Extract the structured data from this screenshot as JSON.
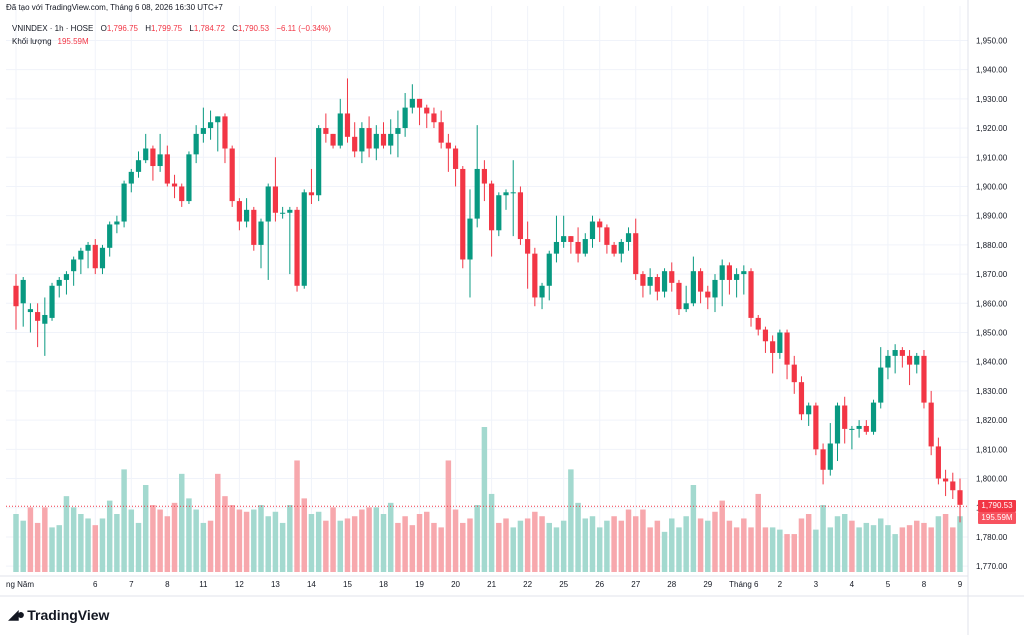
{
  "header": {
    "published": "Đã tạo với TradingView.com, Tháng 6 08, 2026 16:30 UTC+7"
  },
  "legend": {
    "symbol": "VNINDEX · 1h · HOSE",
    "o_label": "O",
    "o_value": "1,796.75",
    "h_label": "H",
    "h_value": "1,799.75",
    "l_label": "L",
    "l_value": "1,784.72",
    "c_label": "C",
    "c_value": "1,790.53",
    "change": "−6.11 (−0.34%)",
    "volume_label": "Khối lượng",
    "volume_value": "195.59M"
  },
  "price_tag": "1,790.53",
  "volume_tag": "195.59M",
  "logo_text": "TradingView",
  "colors": {
    "up": "#089981",
    "down": "#f23645",
    "vol_up": "#a3d9cf",
    "vol_down": "#f7a8ad",
    "grid": "#f0f3fa",
    "axis_text": "#131722"
  },
  "chart_data": {
    "type": "candlestick",
    "title": "",
    "ylim": [
      1768,
      1957
    ],
    "y_ticks": [
      "1,770.00",
      "1,780.00",
      "1,790.00",
      "1,800.00",
      "1,810.00",
      "1,820.00",
      "1,830.00",
      "1,840.00",
      "1,850.00",
      "1,860.00",
      "1,870.00",
      "1,880.00",
      "1,890.00",
      "1,900.00",
      "1,910.00",
      "1,920.00",
      "1,930.00",
      "1,940.00",
      "1,950.00"
    ],
    "y_tick_values": [
      1770,
      1780,
      1790,
      1800,
      1810,
      1820,
      1830,
      1840,
      1850,
      1860,
      1870,
      1880,
      1890,
      1900,
      1910,
      1920,
      1930,
      1940,
      1950
    ],
    "x_ticks": [
      {
        "label": "ng Năm",
        "bar": 0
      },
      {
        "label": "6",
        "bar": 11
      },
      {
        "label": "7",
        "bar": 16
      },
      {
        "label": "8",
        "bar": 21
      },
      {
        "label": "11",
        "bar": 26
      },
      {
        "label": "12",
        "bar": 31
      },
      {
        "label": "13",
        "bar": 36
      },
      {
        "label": "14",
        "bar": 41
      },
      {
        "label": "15",
        "bar": 46
      },
      {
        "label": "18",
        "bar": 51
      },
      {
        "label": "19",
        "bar": 56
      },
      {
        "label": "20",
        "bar": 61
      },
      {
        "label": "21",
        "bar": 66
      },
      {
        "label": "22",
        "bar": 71
      },
      {
        "label": "25",
        "bar": 76
      },
      {
        "label": "26",
        "bar": 81
      },
      {
        "label": "27",
        "bar": 86
      },
      {
        "label": "28",
        "bar": 91
      },
      {
        "label": "29",
        "bar": 96
      },
      {
        "label": "Tháng 6",
        "bar": 101
      },
      {
        "label": "2",
        "bar": 106
      },
      {
        "label": "3",
        "bar": 111
      },
      {
        "label": "4",
        "bar": 116
      },
      {
        "label": "5",
        "bar": 121
      },
      {
        "label": "8",
        "bar": 126
      },
      {
        "label": "9",
        "bar": 131
      }
    ],
    "last_price": 1790.53,
    "candles": [
      [
        1866,
        1859,
        1870,
        1851
      ],
      [
        1860,
        1868,
        1869,
        1852
      ],
      [
        1857,
        1858,
        1860,
        1850
      ],
      [
        1857,
        1854,
        1860,
        1845
      ],
      [
        1853,
        1856,
        1862,
        1842
      ],
      [
        1855,
        1866,
        1867,
        1854
      ],
      [
        1866,
        1868,
        1869,
        1862
      ],
      [
        1868,
        1870,
        1871,
        1863
      ],
      [
        1871,
        1875,
        1876,
        1866
      ],
      [
        1875,
        1878,
        1879,
        1870
      ],
      [
        1878,
        1880,
        1881,
        1872
      ],
      [
        1880,
        1872,
        1882,
        1870
      ],
      [
        1872,
        1879,
        1880,
        1870
      ],
      [
        1879,
        1887,
        1888,
        1876
      ],
      [
        1887,
        1888,
        1890,
        1884
      ],
      [
        1888,
        1901,
        1902,
        1886
      ],
      [
        1901,
        1905,
        1906,
        1898
      ],
      [
        1905,
        1909,
        1912,
        1903
      ],
      [
        1909,
        1913,
        1918,
        1908
      ],
      [
        1913,
        1907,
        1914,
        1902
      ],
      [
        1907,
        1911,
        1918,
        1905
      ],
      [
        1911,
        1901,
        1914,
        1900
      ],
      [
        1901,
        1900,
        1904,
        1896
      ],
      [
        1900,
        1895,
        1901,
        1893
      ],
      [
        1895,
        1911,
        1912,
        1894
      ],
      [
        1911,
        1918,
        1921,
        1908
      ],
      [
        1918,
        1920,
        1927,
        1915
      ],
      [
        1920,
        1922,
        1926,
        1916
      ],
      [
        1922,
        1924,
        1924,
        1912
      ],
      [
        1924,
        1913,
        1925,
        1908
      ],
      [
        1913,
        1895,
        1914,
        1893
      ],
      [
        1895,
        1888,
        1896,
        1885
      ],
      [
        1888,
        1892,
        1896,
        1886
      ],
      [
        1892,
        1880,
        1893,
        1878
      ],
      [
        1880,
        1888,
        1889,
        1872
      ],
      [
        1888,
        1900,
        1901,
        1868
      ],
      [
        1900,
        1891,
        1910,
        1888
      ],
      [
        1891,
        1891,
        1893,
        1889
      ],
      [
        1891,
        1892,
        1893,
        1870
      ],
      [
        1892,
        1866,
        1893,
        1864
      ],
      [
        1866,
        1898,
        1899,
        1865
      ],
      [
        1898,
        1897,
        1906,
        1894
      ],
      [
        1897,
        1920,
        1921,
        1895
      ],
      [
        1920,
        1918,
        1925,
        1915
      ],
      [
        1918,
        1914,
        1918,
        1913
      ],
      [
        1914,
        1925,
        1930,
        1913
      ],
      [
        1925,
        1917,
        1937,
        1915
      ],
      [
        1917,
        1912,
        1922,
        1910
      ],
      [
        1912,
        1920,
        1922,
        1908
      ],
      [
        1920,
        1913,
        1924,
        1910
      ],
      [
        1913,
        1918,
        1921,
        1909
      ],
      [
        1918,
        1914,
        1922,
        1913
      ],
      [
        1914,
        1918,
        1923,
        1911
      ],
      [
        1918,
        1920,
        1926,
        1910
      ],
      [
        1920,
        1927,
        1932,
        1917
      ],
      [
        1927,
        1930,
        1935,
        1925
      ],
      [
        1930,
        1927,
        1930,
        1921
      ],
      [
        1927,
        1925,
        1928,
        1920
      ],
      [
        1925,
        1922,
        1927,
        1920
      ],
      [
        1922,
        1915,
        1926,
        1913
      ],
      [
        1915,
        1913,
        1918,
        1905
      ],
      [
        1913,
        1906,
        1914,
        1900
      ],
      [
        1906,
        1875,
        1907,
        1872
      ],
      [
        1875,
        1889,
        1899,
        1862
      ],
      [
        1889,
        1906,
        1921,
        1886
      ],
      [
        1906,
        1901,
        1909,
        1895
      ],
      [
        1901,
        1885,
        1902,
        1876
      ],
      [
        1885,
        1897,
        1898,
        1883
      ],
      [
        1897,
        1898,
        1899,
        1892
      ],
      [
        1898,
        1898,
        1909,
        1883
      ],
      [
        1898,
        1882,
        1900,
        1880
      ],
      [
        1882,
        1877,
        1888,
        1865
      ],
      [
        1877,
        1862,
        1879,
        1859
      ],
      [
        1862,
        1866,
        1867,
        1858
      ],
      [
        1866,
        1877,
        1878,
        1861
      ],
      [
        1877,
        1881,
        1890,
        1874
      ],
      [
        1881,
        1883,
        1890,
        1879
      ],
      [
        1883,
        1881,
        1883,
        1877
      ],
      [
        1881,
        1877,
        1886,
        1874
      ],
      [
        1877,
        1882,
        1884,
        1876
      ],
      [
        1882,
        1888,
        1890,
        1879
      ],
      [
        1888,
        1886,
        1889,
        1881
      ],
      [
        1886,
        1880,
        1887,
        1877
      ],
      [
        1880,
        1877,
        1881,
        1876
      ],
      [
        1877,
        1881,
        1882,
        1874
      ],
      [
        1881,
        1884,
        1886,
        1878
      ],
      [
        1884,
        1870,
        1889,
        1868
      ],
      [
        1870,
        1866,
        1871,
        1862
      ],
      [
        1866,
        1869,
        1872,
        1863
      ],
      [
        1869,
        1864,
        1870,
        1861
      ],
      [
        1864,
        1871,
        1872,
        1862
      ],
      [
        1871,
        1867,
        1874,
        1864
      ],
      [
        1867,
        1858,
        1868,
        1856
      ],
      [
        1858,
        1860,
        1866,
        1857
      ],
      [
        1860,
        1871,
        1876,
        1859
      ],
      [
        1871,
        1864,
        1872,
        1860
      ],
      [
        1864,
        1862,
        1866,
        1858
      ],
      [
        1862,
        1868,
        1870,
        1857
      ],
      [
        1868,
        1873,
        1875,
        1859
      ],
      [
        1873,
        1868,
        1874,
        1863
      ],
      [
        1868,
        1870,
        1872,
        1862
      ],
      [
        1870,
        1871,
        1873,
        1863
      ],
      [
        1871,
        1855,
        1872,
        1852
      ],
      [
        1855,
        1851,
        1856,
        1849
      ],
      [
        1851,
        1847,
        1852,
        1843
      ],
      [
        1847,
        1843,
        1849,
        1836
      ],
      [
        1843,
        1850,
        1851,
        1841
      ],
      [
        1850,
        1839,
        1851,
        1834
      ],
      [
        1839,
        1833,
        1842,
        1829
      ],
      [
        1833,
        1822,
        1835,
        1820
      ],
      [
        1822,
        1825,
        1826,
        1818
      ],
      [
        1825,
        1810,
        1826,
        1808
      ],
      [
        1810,
        1803,
        1812,
        1798
      ],
      [
        1803,
        1812,
        1819,
        1801
      ],
      [
        1812,
        1825,
        1826,
        1806
      ],
      [
        1825,
        1817,
        1828,
        1812
      ],
      [
        1817,
        1817,
        1818,
        1810
      ],
      [
        1817,
        1818,
        1820,
        1814
      ],
      [
        1818,
        1816,
        1820,
        1815
      ],
      [
        1816,
        1826,
        1827,
        1815
      ],
      [
        1826,
        1838,
        1845,
        1824
      ],
      [
        1838,
        1842,
        1844,
        1834
      ],
      [
        1842,
        1844,
        1846,
        1836
      ],
      [
        1844,
        1842,
        1845,
        1838
      ],
      [
        1842,
        1839,
        1844,
        1832
      ],
      [
        1839,
        1842,
        1843,
        1836
      ],
      [
        1842,
        1826,
        1844,
        1824
      ],
      [
        1826,
        1811,
        1830,
        1808
      ],
      [
        1811,
        1800,
        1814,
        1798
      ],
      [
        1800,
        1799,
        1803,
        1794
      ],
      [
        1799,
        1796,
        1802,
        1793
      ],
      [
        1796,
        1791,
        1800,
        1785
      ]
    ],
    "volumes": [
      [
        52,
        1
      ],
      [
        46,
        1
      ],
      [
        58,
        0
      ],
      [
        44,
        0
      ],
      [
        58,
        0
      ],
      [
        40,
        1
      ],
      [
        42,
        1
      ],
      [
        68,
        1
      ],
      [
        58,
        1
      ],
      [
        52,
        1
      ],
      [
        48,
        1
      ],
      [
        42,
        0
      ],
      [
        48,
        1
      ],
      [
        64,
        1
      ],
      [
        52,
        1
      ],
      [
        92,
        1
      ],
      [
        56,
        1
      ],
      [
        44,
        1
      ],
      [
        78,
        1
      ],
      [
        60,
        0
      ],
      [
        56,
        0
      ],
      [
        50,
        0
      ],
      [
        62,
        0
      ],
      [
        88,
        1
      ],
      [
        66,
        1
      ],
      [
        56,
        1
      ],
      [
        44,
        1
      ],
      [
        46,
        0
      ],
      [
        88,
        0
      ],
      [
        68,
        0
      ],
      [
        60,
        0
      ],
      [
        56,
        0
      ],
      [
        54,
        0
      ],
      [
        56,
        1
      ],
      [
        60,
        1
      ],
      [
        50,
        1
      ],
      [
        54,
        1
      ],
      [
        44,
        1
      ],
      [
        60,
        1
      ],
      [
        100,
        0
      ],
      [
        66,
        0
      ],
      [
        52,
        1
      ],
      [
        54,
        1
      ],
      [
        46,
        0
      ],
      [
        58,
        0
      ],
      [
        46,
        1
      ],
      [
        48,
        0
      ],
      [
        50,
        0
      ],
      [
        56,
        0
      ],
      [
        58,
        0
      ],
      [
        58,
        1
      ],
      [
        52,
        1
      ],
      [
        62,
        1
      ],
      [
        44,
        0
      ],
      [
        50,
        0
      ],
      [
        42,
        0
      ],
      [
        52,
        0
      ],
      [
        54,
        0
      ],
      [
        44,
        0
      ],
      [
        40,
        0
      ],
      [
        100,
        0
      ],
      [
        56,
        0
      ],
      [
        44,
        0
      ],
      [
        48,
        0
      ],
      [
        60,
        1
      ],
      [
        130,
        1
      ],
      [
        70,
        1
      ],
      [
        44,
        0
      ],
      [
        48,
        0
      ],
      [
        40,
        1
      ],
      [
        46,
        1
      ],
      [
        48,
        0
      ],
      [
        54,
        0
      ],
      [
        50,
        0
      ],
      [
        44,
        1
      ],
      [
        40,
        1
      ],
      [
        46,
        1
      ],
      [
        92,
        1
      ],
      [
        62,
        1
      ],
      [
        48,
        1
      ],
      [
        50,
        1
      ],
      [
        40,
        1
      ],
      [
        46,
        1
      ],
      [
        50,
        0
      ],
      [
        46,
        0
      ],
      [
        56,
        0
      ],
      [
        50,
        0
      ],
      [
        56,
        0
      ],
      [
        40,
        0
      ],
      [
        46,
        0
      ],
      [
        36,
        1
      ],
      [
        48,
        1
      ],
      [
        40,
        1
      ],
      [
        50,
        1
      ],
      [
        78,
        1
      ],
      [
        48,
        0
      ],
      [
        46,
        1
      ],
      [
        54,
        0
      ],
      [
        64,
        0
      ],
      [
        46,
        0
      ],
      [
        40,
        0
      ],
      [
        48,
        0
      ],
      [
        40,
        0
      ],
      [
        70,
        0
      ],
      [
        40,
        0
      ],
      [
        40,
        1
      ],
      [
        38,
        1
      ],
      [
        34,
        0
      ],
      [
        34,
        0
      ],
      [
        48,
        0
      ],
      [
        52,
        0
      ],
      [
        38,
        1
      ],
      [
        60,
        1
      ],
      [
        40,
        1
      ],
      [
        50,
        1
      ],
      [
        52,
        1
      ],
      [
        46,
        0
      ],
      [
        40,
        1
      ],
      [
        44,
        1
      ],
      [
        42,
        1
      ],
      [
        48,
        1
      ],
      [
        42,
        1
      ],
      [
        34,
        1
      ],
      [
        40,
        0
      ],
      [
        42,
        0
      ],
      [
        46,
        0
      ],
      [
        44,
        0
      ],
      [
        40,
        0
      ],
      [
        50,
        1
      ],
      [
        52,
        0
      ],
      [
        40,
        0
      ],
      [
        50,
        1
      ]
    ]
  }
}
